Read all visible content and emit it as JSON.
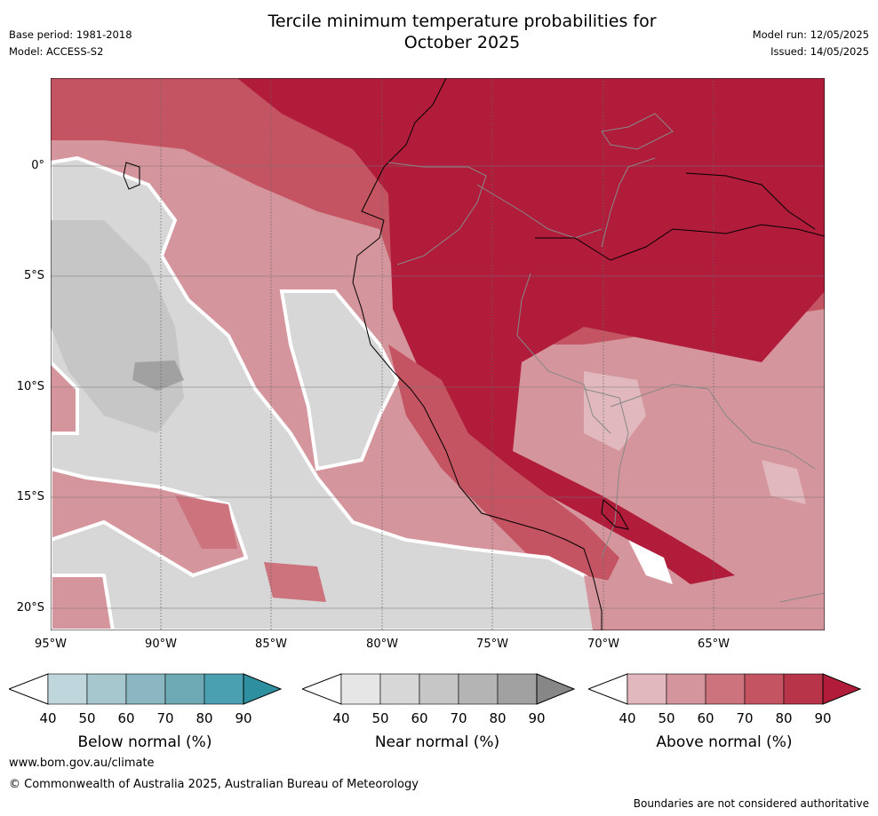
{
  "title_line1": "Tercile minimum temperature probabilities for",
  "title_line2": "October 2025",
  "base_period": "Base period: 1981-2018",
  "model": "Model: ACCESS-S2",
  "model_run": "Model run: 12/05/2025",
  "issued": "Issued: 14/05/2025",
  "lat_ticks": [
    "0°",
    "5°S",
    "10°S",
    "15°S",
    "20°S"
  ],
  "lon_ticks": [
    "95°W",
    "90°W",
    "85°W",
    "80°W",
    "75°W",
    "70°W",
    "65°W"
  ],
  "colorbars": [
    {
      "name": "Below normal (%)",
      "ticks": [
        "40",
        "50",
        "60",
        "70",
        "80",
        "90"
      ],
      "colors": [
        "#bfd6dc",
        "#a6c7ce",
        "#8ab7c1",
        "#6eaab5",
        "#4aa0b0",
        "#2e8fa0"
      ]
    },
    {
      "name": "Near normal (%)",
      "ticks": [
        "40",
        "50",
        "60",
        "70",
        "80",
        "90"
      ],
      "colors": [
        "#e6e6e6",
        "#d7d7d7",
        "#c6c6c6",
        "#b4b4b4",
        "#a1a1a1",
        "#878787"
      ]
    },
    {
      "name": "Above normal (%)",
      "ticks": [
        "40",
        "50",
        "60",
        "70",
        "80",
        "90"
      ],
      "colors": [
        "#e0b8bd",
        "#d5959c",
        "#cc737e",
        "#c45461",
        "#b83448",
        "#b01c3a"
      ]
    }
  ],
  "website": "www.bom.gov.au/climate",
  "copyright": "© Commonwealth of Australia 2025, Australian Bureau of Meteorology",
  "disclaimer": "Boundaries are not considered authoritative"
}
